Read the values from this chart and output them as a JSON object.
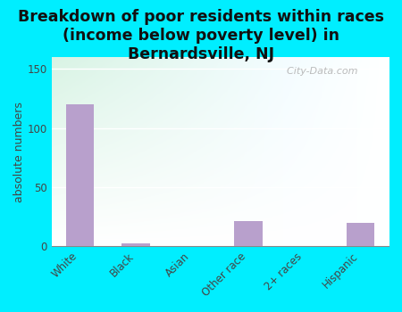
{
  "categories": [
    "White",
    "Black",
    "Asian",
    "Other race",
    "2+ races",
    "Hispanic"
  ],
  "values": [
    120,
    2,
    0,
    21,
    0,
    20
  ],
  "bar_color": "#b8a0cc",
  "title": "Breakdown of poor residents within races\n(income below poverty level) in\nBernardsville, NJ",
  "ylabel": "absolute numbers",
  "ylim": [
    0,
    160
  ],
  "yticks": [
    0,
    50,
    100,
    150
  ],
  "background_outer": "#00eeff",
  "bg_top_left": "#d8edd8",
  "bg_top_right": "#e8f5f5",
  "bg_bottom": "#ffffff",
  "grid_color": "#ffffff",
  "title_fontsize": 12.5,
  "ylabel_fontsize": 9,
  "tick_fontsize": 8.5,
  "watermark": "  City-Data.com",
  "title_color": "#111111"
}
